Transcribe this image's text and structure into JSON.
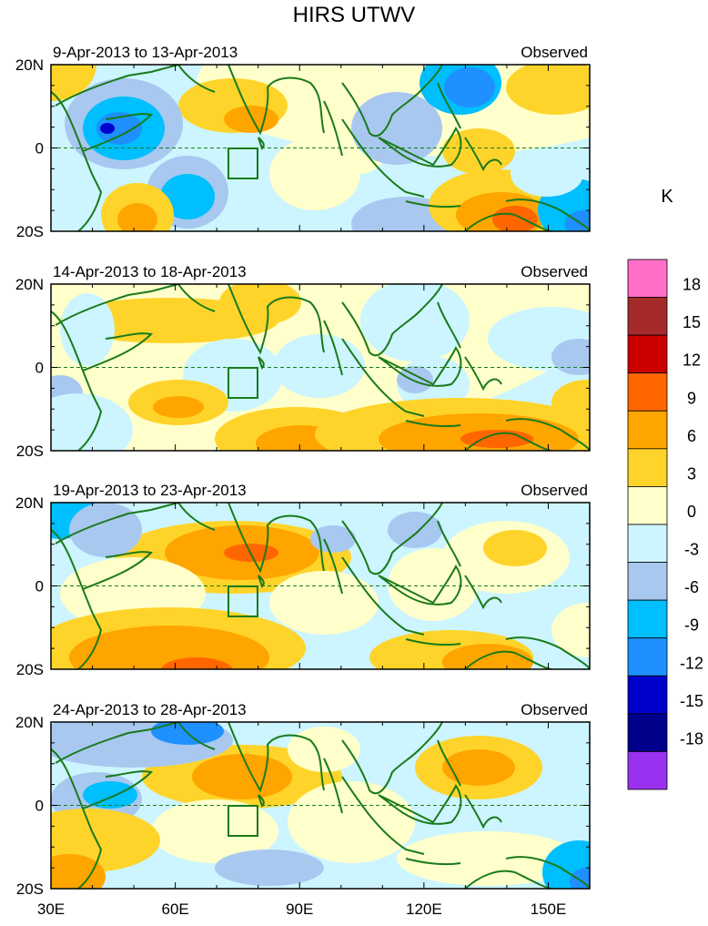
{
  "title": "HIRS UTWV",
  "panel_tag": "Observed",
  "unit": "K",
  "lat_labels": [
    "20N",
    "0",
    "20S"
  ],
  "lon_labels": [
    "30E",
    "60E",
    "90E",
    "120E",
    "150E"
  ],
  "lon_range": [
    30,
    160
  ],
  "lat_range": [
    -20,
    20
  ],
  "panels": [
    {
      "date_range": "9-Apr-2013 to 13-Apr-2013"
    },
    {
      "date_range": "14-Apr-2013 to 18-Apr-2013"
    },
    {
      "date_range": "19-Apr-2013 to 23-Apr-2013"
    },
    {
      "date_range": "24-Apr-2013 to 28-Apr-2013"
    }
  ],
  "colorbar": {
    "labels": [
      "18",
      "15",
      "12",
      "9",
      "6",
      "3",
      "0",
      "-3",
      "-6",
      "-9",
      "-12",
      "-15",
      "-18"
    ],
    "colors": [
      "#ff6ec7",
      "#a52a2a",
      "#cd0000",
      "#ff6600",
      "#ffa500",
      "#ffd42a",
      "#ffffcc",
      "#ccf5ff",
      "#a8c8f0",
      "#00bfff",
      "#1e90ff",
      "#0000cd",
      "#00008b",
      "#9932f0"
    ]
  },
  "colors": {
    "coast": "#1a7a1a",
    "frame": "#000000",
    "equator": "#1a7a1a"
  }
}
